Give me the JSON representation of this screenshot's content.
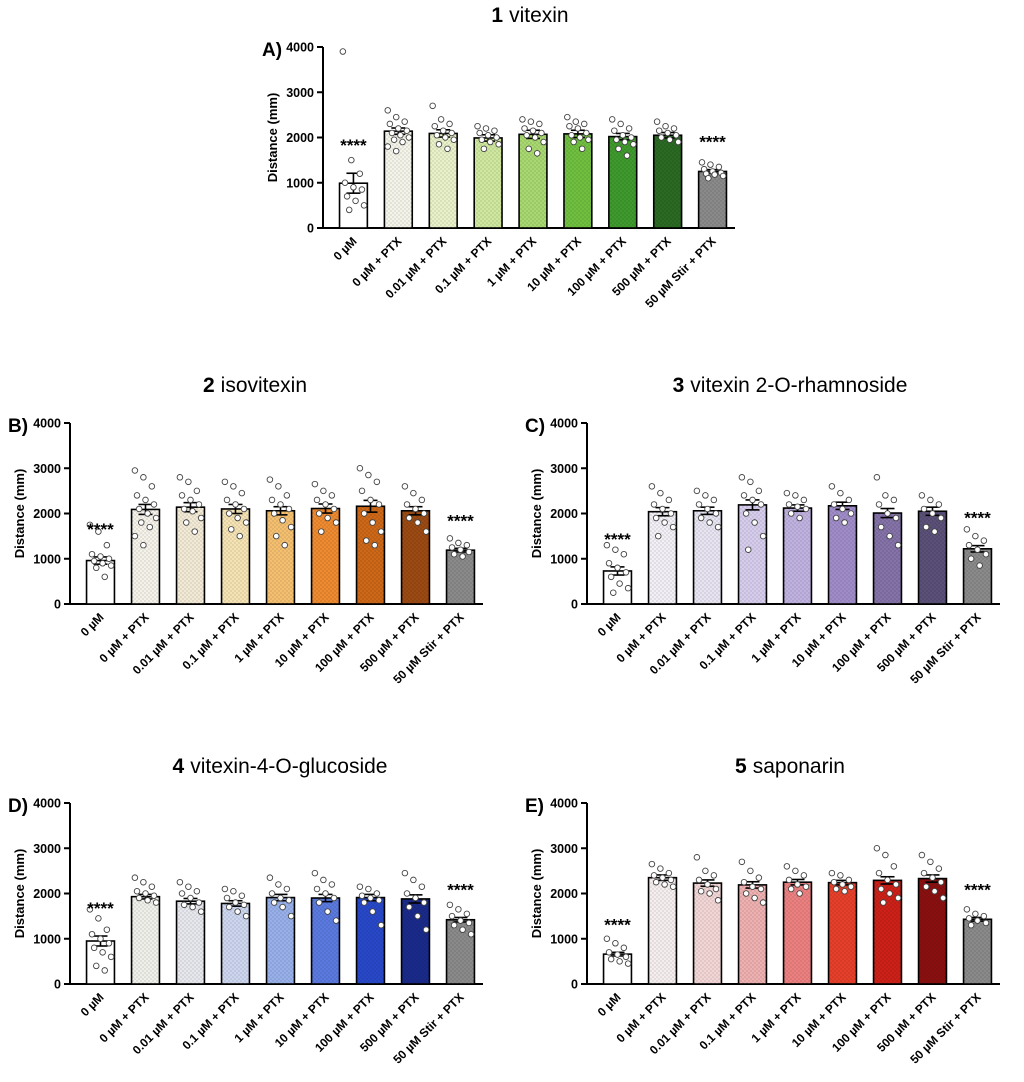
{
  "figure": {
    "y_axis_label": "Distance (mm)",
    "categories": [
      "0 µM",
      "0 µM + PTX",
      "0.01 µM + PTX",
      "0.1 µM + PTX",
      "1 µM + PTX",
      "10 µM + PTX",
      "100 µM + PTX",
      "500 µM + PTX",
      "50 µM Stir + PTX"
    ],
    "significance_label": "****"
  },
  "chart_data": [
    {
      "type": "bar",
      "panel_letter": "A)",
      "compound_number": "1",
      "compound_name": "vitexin",
      "ylabel": "Distance (mm)",
      "ylim": [
        0,
        4000
      ],
      "yticks": [
        0,
        1000,
        2000,
        3000,
        4000
      ],
      "categories": [
        "0 µM",
        "0 µM + PTX",
        "0.01 µM + PTX",
        "0.1 µM + PTX",
        "1 µM + PTX",
        "10 µM + PTX",
        "100 µM + PTX",
        "500 µM + PTX",
        "50 µM Stir + PTX"
      ],
      "values": [
        990,
        2140,
        2090,
        1990,
        2070,
        2080,
        2020,
        2050,
        1250
      ],
      "sem": [
        220,
        70,
        80,
        70,
        90,
        80,
        70,
        60,
        40
      ],
      "significant": [
        true,
        false,
        false,
        false,
        false,
        false,
        false,
        false,
        true
      ],
      "colors": [
        "#ffffff",
        "#f4f4ea",
        "#e8f1c8",
        "#cfe8a0",
        "#a8d870",
        "#70c040",
        "#3f9a2e",
        "#2a6a22",
        "#8a8a8a"
      ],
      "points": [
        [
          3900,
          1500,
          1200,
          1000,
          900,
          850,
          700,
          600,
          500,
          400
        ],
        [
          2600,
          2450,
          2350,
          2300,
          2200,
          2150,
          2100,
          2050,
          2000,
          1950,
          1900,
          1800,
          1700
        ],
        [
          2700,
          2400,
          2300,
          2250,
          2150,
          2100,
          2050,
          2000,
          1950,
          1850,
          1750
        ],
        [
          2250,
          2200,
          2150,
          2100,
          2050,
          2000,
          1950,
          1900,
          1850,
          1750
        ],
        [
          2400,
          2350,
          2300,
          2200,
          2150,
          2100,
          2050,
          2000,
          1900,
          1750,
          1650
        ],
        [
          2450,
          2350,
          2300,
          2250,
          2200,
          2100,
          2050,
          2000,
          1950,
          1900,
          1750
        ],
        [
          2400,
          2300,
          2200,
          2150,
          2050,
          2000,
          1950,
          1900,
          1850,
          1750,
          1600
        ],
        [
          2350,
          2250,
          2200,
          2150,
          2100,
          2050,
          2000,
          1950,
          1900
        ],
        [
          1450,
          1400,
          1350,
          1300,
          1250,
          1220,
          1200,
          1180,
          1150,
          1100
        ]
      ]
    },
    {
      "type": "bar",
      "panel_letter": "B)",
      "compound_number": "2",
      "compound_name": "isovitexin",
      "ylabel": "Distance (mm)",
      "ylim": [
        0,
        4000
      ],
      "yticks": [
        0,
        1000,
        2000,
        3000,
        4000
      ],
      "categories": [
        "0 µM",
        "0 µM + PTX",
        "0.01 µM + PTX",
        "0.1 µM + PTX",
        "1 µM + PTX",
        "10 µM + PTX",
        "100 µM + PTX",
        "500 µM + PTX",
        "50 µM Stir + PTX"
      ],
      "values": [
        960,
        2090,
        2140,
        2100,
        2060,
        2110,
        2160,
        2060,
        1190
      ],
      "sem": [
        80,
        110,
        100,
        100,
        90,
        100,
        130,
        90,
        40
      ],
      "significant": [
        true,
        false,
        false,
        false,
        false,
        false,
        false,
        false,
        true
      ],
      "colors": [
        "#ffffff",
        "#f5f2ea",
        "#f2ead6",
        "#f5e3b4",
        "#f4c070",
        "#ee8a30",
        "#cc6818",
        "#9a4a12",
        "#8a8a8a"
      ],
      "points": [
        [
          1750,
          1600,
          1300,
          1100,
          1050,
          1000,
          950,
          900,
          850,
          800,
          600
        ],
        [
          2950,
          2800,
          2600,
          2400,
          2300,
          2200,
          2100,
          2000,
          1900,
          1800,
          1700,
          1500,
          1300
        ],
        [
          2800,
          2700,
          2500,
          2400,
          2300,
          2200,
          2100,
          2050,
          1900,
          1800,
          1600
        ],
        [
          2700,
          2600,
          2450,
          2300,
          2200,
          2100,
          2000,
          1900,
          1800,
          1650,
          1500
        ],
        [
          2750,
          2600,
          2400,
          2300,
          2200,
          2100,
          2000,
          1850,
          1700,
          1500,
          1300
        ],
        [
          2650,
          2500,
          2400,
          2300,
          2200,
          2100,
          2000,
          1900,
          1800,
          1600
        ],
        [
          3000,
          2850,
          2700,
          2500,
          2300,
          2200,
          2000,
          1800,
          1600,
          1400,
          1300
        ],
        [
          2600,
          2450,
          2300,
          2200,
          2100,
          2000,
          1900,
          1800,
          1600
        ],
        [
          1450,
          1350,
          1300,
          1250,
          1200,
          1150,
          1100,
          1050
        ]
      ]
    },
    {
      "type": "bar",
      "panel_letter": "C)",
      "compound_number": "3",
      "compound_name": "vitexin 2-O-rhamnoside",
      "ylabel": "Distance (mm)",
      "ylim": [
        0,
        4000
      ],
      "yticks": [
        0,
        1000,
        2000,
        3000,
        4000
      ],
      "categories": [
        "0 µM",
        "0 µM + PTX",
        "0.01 µM + PTX",
        "0.1 µM + PTX",
        "1 µM + PTX",
        "10 µM + PTX",
        "100 µM + PTX",
        "500 µM + PTX",
        "50 µM Stir + PTX"
      ],
      "values": [
        730,
        2040,
        2060,
        2190,
        2120,
        2170,
        2010,
        2050,
        1220
      ],
      "sem": [
        90,
        90,
        80,
        110,
        70,
        80,
        100,
        90,
        70
      ],
      "significant": [
        true,
        false,
        false,
        false,
        false,
        false,
        false,
        false,
        true
      ],
      "colors": [
        "#ffffff",
        "#f2f0f6",
        "#e8e4f2",
        "#d6cdec",
        "#c0b2e0",
        "#a08cc8",
        "#8472a8",
        "#5a5078",
        "#8a8a8a"
      ],
      "points": [
        [
          1300,
          1200,
          1100,
          900,
          800,
          700,
          600,
          450,
          350,
          250
        ],
        [
          2600,
          2450,
          2300,
          2200,
          2100,
          2000,
          1900,
          1800,
          1700,
          1500
        ],
        [
          2500,
          2400,
          2300,
          2200,
          2100,
          2000,
          1900,
          1800,
          1700
        ],
        [
          2800,
          2700,
          2500,
          2400,
          2300,
          2200,
          2000,
          1800,
          1500,
          1200
        ],
        [
          2450,
          2400,
          2300,
          2200,
          2150,
          2100,
          2000,
          1900
        ],
        [
          2600,
          2450,
          2300,
          2200,
          2100,
          2000,
          1900,
          1800
        ],
        [
          2800,
          2400,
          2300,
          2200,
          2000,
          1900,
          1700,
          1500,
          1300
        ],
        [
          2400,
          2300,
          2200,
          2100,
          2000,
          1900,
          1700,
          1600
        ],
        [
          1650,
          1500,
          1400,
          1300,
          1200,
          1100,
          1000,
          850
        ]
      ]
    },
    {
      "type": "bar",
      "panel_letter": "D)",
      "compound_number": "4",
      "compound_name": "vitexin-4-O-glucoside",
      "ylabel": "Distance (mm)",
      "ylim": [
        0,
        4000
      ],
      "yticks": [
        0,
        1000,
        2000,
        3000,
        4000
      ],
      "categories": [
        "0 µM",
        "0 µM + PTX",
        "0.01 µM + PTX",
        "0.1 µM + PTX",
        "1 µM + PTX",
        "10 µM + PTX",
        "100 µM + PTX",
        "500 µM + PTX",
        "50 µM Stir + PTX"
      ],
      "values": [
        950,
        1930,
        1830,
        1780,
        1910,
        1900,
        1910,
        1880,
        1420
      ],
      "sem": [
        110,
        50,
        60,
        60,
        70,
        80,
        70,
        90,
        50
      ],
      "significant": [
        true,
        false,
        false,
        false,
        false,
        false,
        false,
        false,
        true
      ],
      "colors": [
        "#ffffff",
        "#f0f0ea",
        "#e6e8ee",
        "#ccd6ee",
        "#98b0ea",
        "#5a7ae0",
        "#2848c8",
        "#1a2a8a",
        "#8a8a8a"
      ],
      "points": [
        [
          1650,
          1450,
          1200,
          1100,
          1000,
          900,
          800,
          700,
          600,
          400,
          300
        ],
        [
          2350,
          2250,
          2150,
          2050,
          2000,
          1950,
          1900,
          1850,
          1800
        ],
        [
          2250,
          2150,
          2050,
          2000,
          1900,
          1800,
          1750,
          1700,
          1600
        ],
        [
          2100,
          2050,
          1950,
          1900,
          1800,
          1750,
          1700,
          1600,
          1500
        ],
        [
          2350,
          2200,
          2100,
          2000,
          1900,
          1850,
          1800,
          1700,
          1500
        ],
        [
          2450,
          2300,
          2200,
          2100,
          2000,
          1900,
          1800,
          1600,
          1400
        ],
        [
          2150,
          2100,
          2000,
          1950,
          1900,
          1850,
          1800,
          1600,
          1300
        ],
        [
          2450,
          2300,
          2150,
          2000,
          1900,
          1800,
          1700,
          1500,
          1200
        ],
        [
          1750,
          1650,
          1550,
          1500,
          1400,
          1350,
          1300,
          1200,
          1100
        ]
      ]
    },
    {
      "type": "bar",
      "panel_letter": "E)",
      "compound_number": "5",
      "compound_name": "saponarin",
      "ylabel": "Distance (mm)",
      "ylim": [
        0,
        4000
      ],
      "yticks": [
        0,
        1000,
        2000,
        3000,
        4000
      ],
      "categories": [
        "0 µM",
        "0 µM + PTX",
        "0.01 µM + PTX",
        "0.1 µM + PTX",
        "1 µM + PTX",
        "10 µM + PTX",
        "100 µM + PTX",
        "500 µM + PTX",
        "50 µM Stir + PTX"
      ],
      "values": [
        660,
        2350,
        2230,
        2190,
        2250,
        2240,
        2290,
        2330,
        1430
      ],
      "sem": [
        40,
        60,
        70,
        70,
        60,
        50,
        80,
        80,
        40
      ],
      "significant": [
        true,
        false,
        false,
        false,
        false,
        false,
        false,
        false,
        true
      ],
      "colors": [
        "#ffffff",
        "#f6eeee",
        "#f2d6d6",
        "#eeb0b0",
        "#ec8080",
        "#e6402a",
        "#cc2018",
        "#8a1010",
        "#8a8a8a"
      ],
      "points": [
        [
          1000,
          900,
          800,
          700,
          650,
          600,
          550,
          500,
          450
        ],
        [
          2650,
          2550,
          2450,
          2400,
          2350,
          2300,
          2250,
          2200,
          2150
        ],
        [
          2800,
          2500,
          2400,
          2300,
          2200,
          2100,
          2050,
          2000,
          1850
        ],
        [
          2700,
          2500,
          2350,
          2250,
          2150,
          2100,
          2000,
          1900,
          1800
        ],
        [
          2600,
          2500,
          2400,
          2300,
          2200,
          2150,
          2100,
          2000
        ],
        [
          2450,
          2400,
          2300,
          2250,
          2200,
          2150,
          2100,
          2050
        ],
        [
          3000,
          2850,
          2600,
          2450,
          2300,
          2200,
          2100,
          2000,
          1900,
          1800
        ],
        [
          2850,
          2700,
          2550,
          2450,
          2350,
          2250,
          2150,
          2050,
          1900
        ],
        [
          1650,
          1550,
          1500,
          1450,
          1400,
          1350,
          1300
        ]
      ]
    }
  ]
}
